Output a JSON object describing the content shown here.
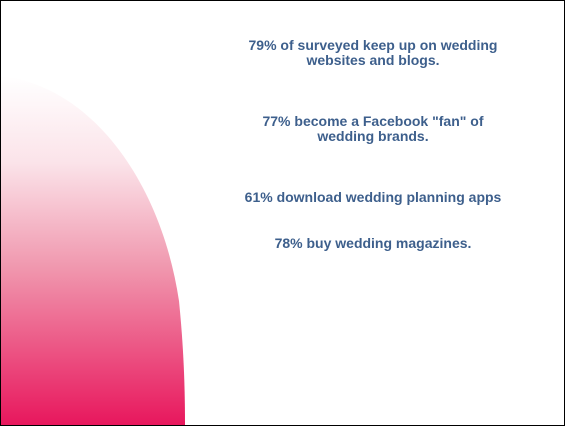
{
  "slide": {
    "stats": [
      {
        "lines": [
          "79% of surveyed keep up on wedding",
          "websites and blogs."
        ]
      },
      {
        "lines": [
          "77% become a Facebook \"fan\" of",
          "wedding brands."
        ]
      },
      {
        "lines": [
          "61% download wedding planning apps"
        ]
      },
      {
        "lines": [
          "78% buy wedding magazines."
        ]
      }
    ]
  },
  "colors": {
    "text": "#3d5f8c",
    "swoosh_top": "#ffffff",
    "swoosh_bottom": "#e8175d",
    "border": "#000000"
  }
}
